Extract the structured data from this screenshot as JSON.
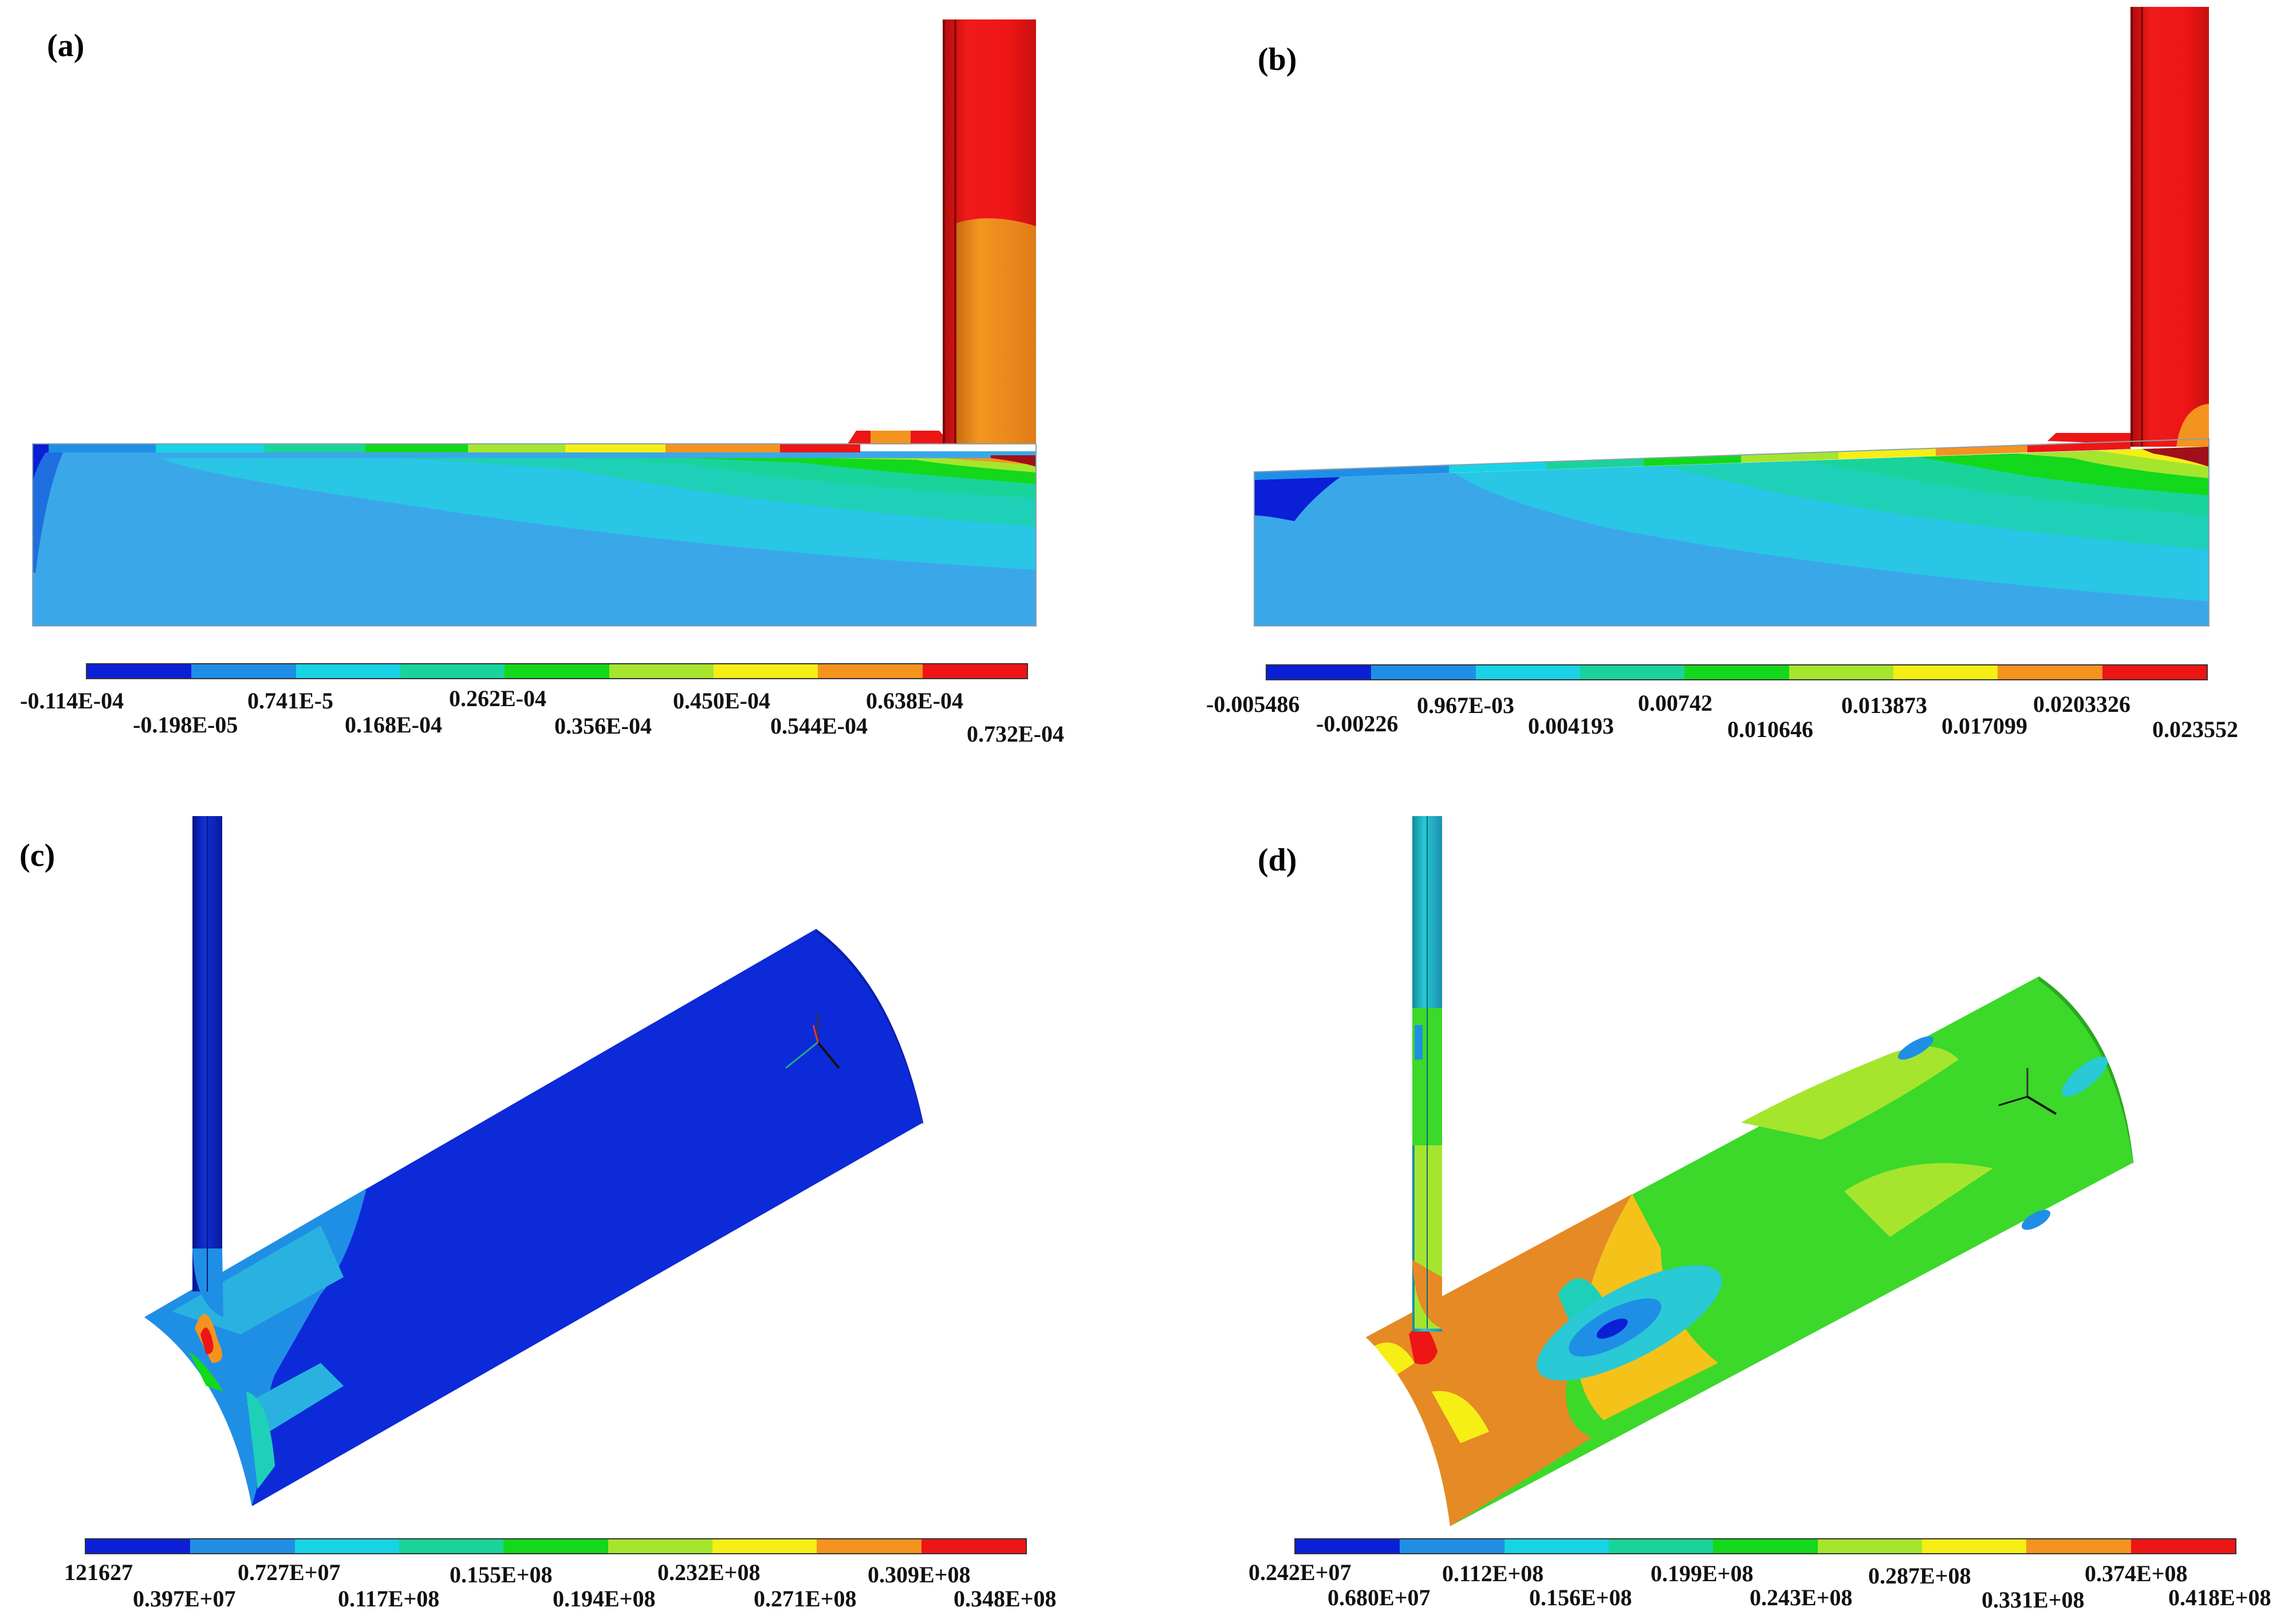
{
  "palette": [
    "#0a1fd6",
    "#1f8fe6",
    "#18d3e6",
    "#19d49a",
    "#13d81b",
    "#a6e52e",
    "#f5ef16",
    "#f5931f",
    "#ee1515"
  ],
  "panels": [
    {
      "label": "(a)",
      "ticks_upper": [
        "-0.114E-04",
        "0.741E-5",
        "0.262E-04",
        "0.450E-04",
        "0.638E-04"
      ],
      "ticks_lower": [
        "-0.198E-05",
        "0.168E-04",
        "0.356E-04",
        "0.544E-04",
        "0.732E-04"
      ]
    },
    {
      "label": "(b)",
      "ticks_upper": [
        "-0.005486",
        "0.967E-03",
        "0.00742",
        "0.013873",
        "0.0203326"
      ],
      "ticks_lower": [
        "-0.00226",
        "0.004193",
        "0.010646",
        "0.017099",
        "0.023552"
      ]
    },
    {
      "label": "(c)",
      "ticks_upper": [
        "121627",
        "0.727E+07",
        "0.155E+08",
        "0.232E+08",
        "0.309E+08"
      ],
      "ticks_lower": [
        "0.397E+07",
        "0.117E+08",
        "0.194E+08",
        "0.271E+08",
        "0.348E+08"
      ]
    },
    {
      "label": "(d)",
      "ticks_upper": [
        "0.242E+07",
        "0.112E+08",
        "0.199E+08",
        "0.287E+08",
        "0.374E+08"
      ],
      "ticks_lower": [
        "0.680E+07",
        "0.156E+08",
        "0.243E+08",
        "0.331E+08",
        "0.418E+08"
      ]
    }
  ]
}
